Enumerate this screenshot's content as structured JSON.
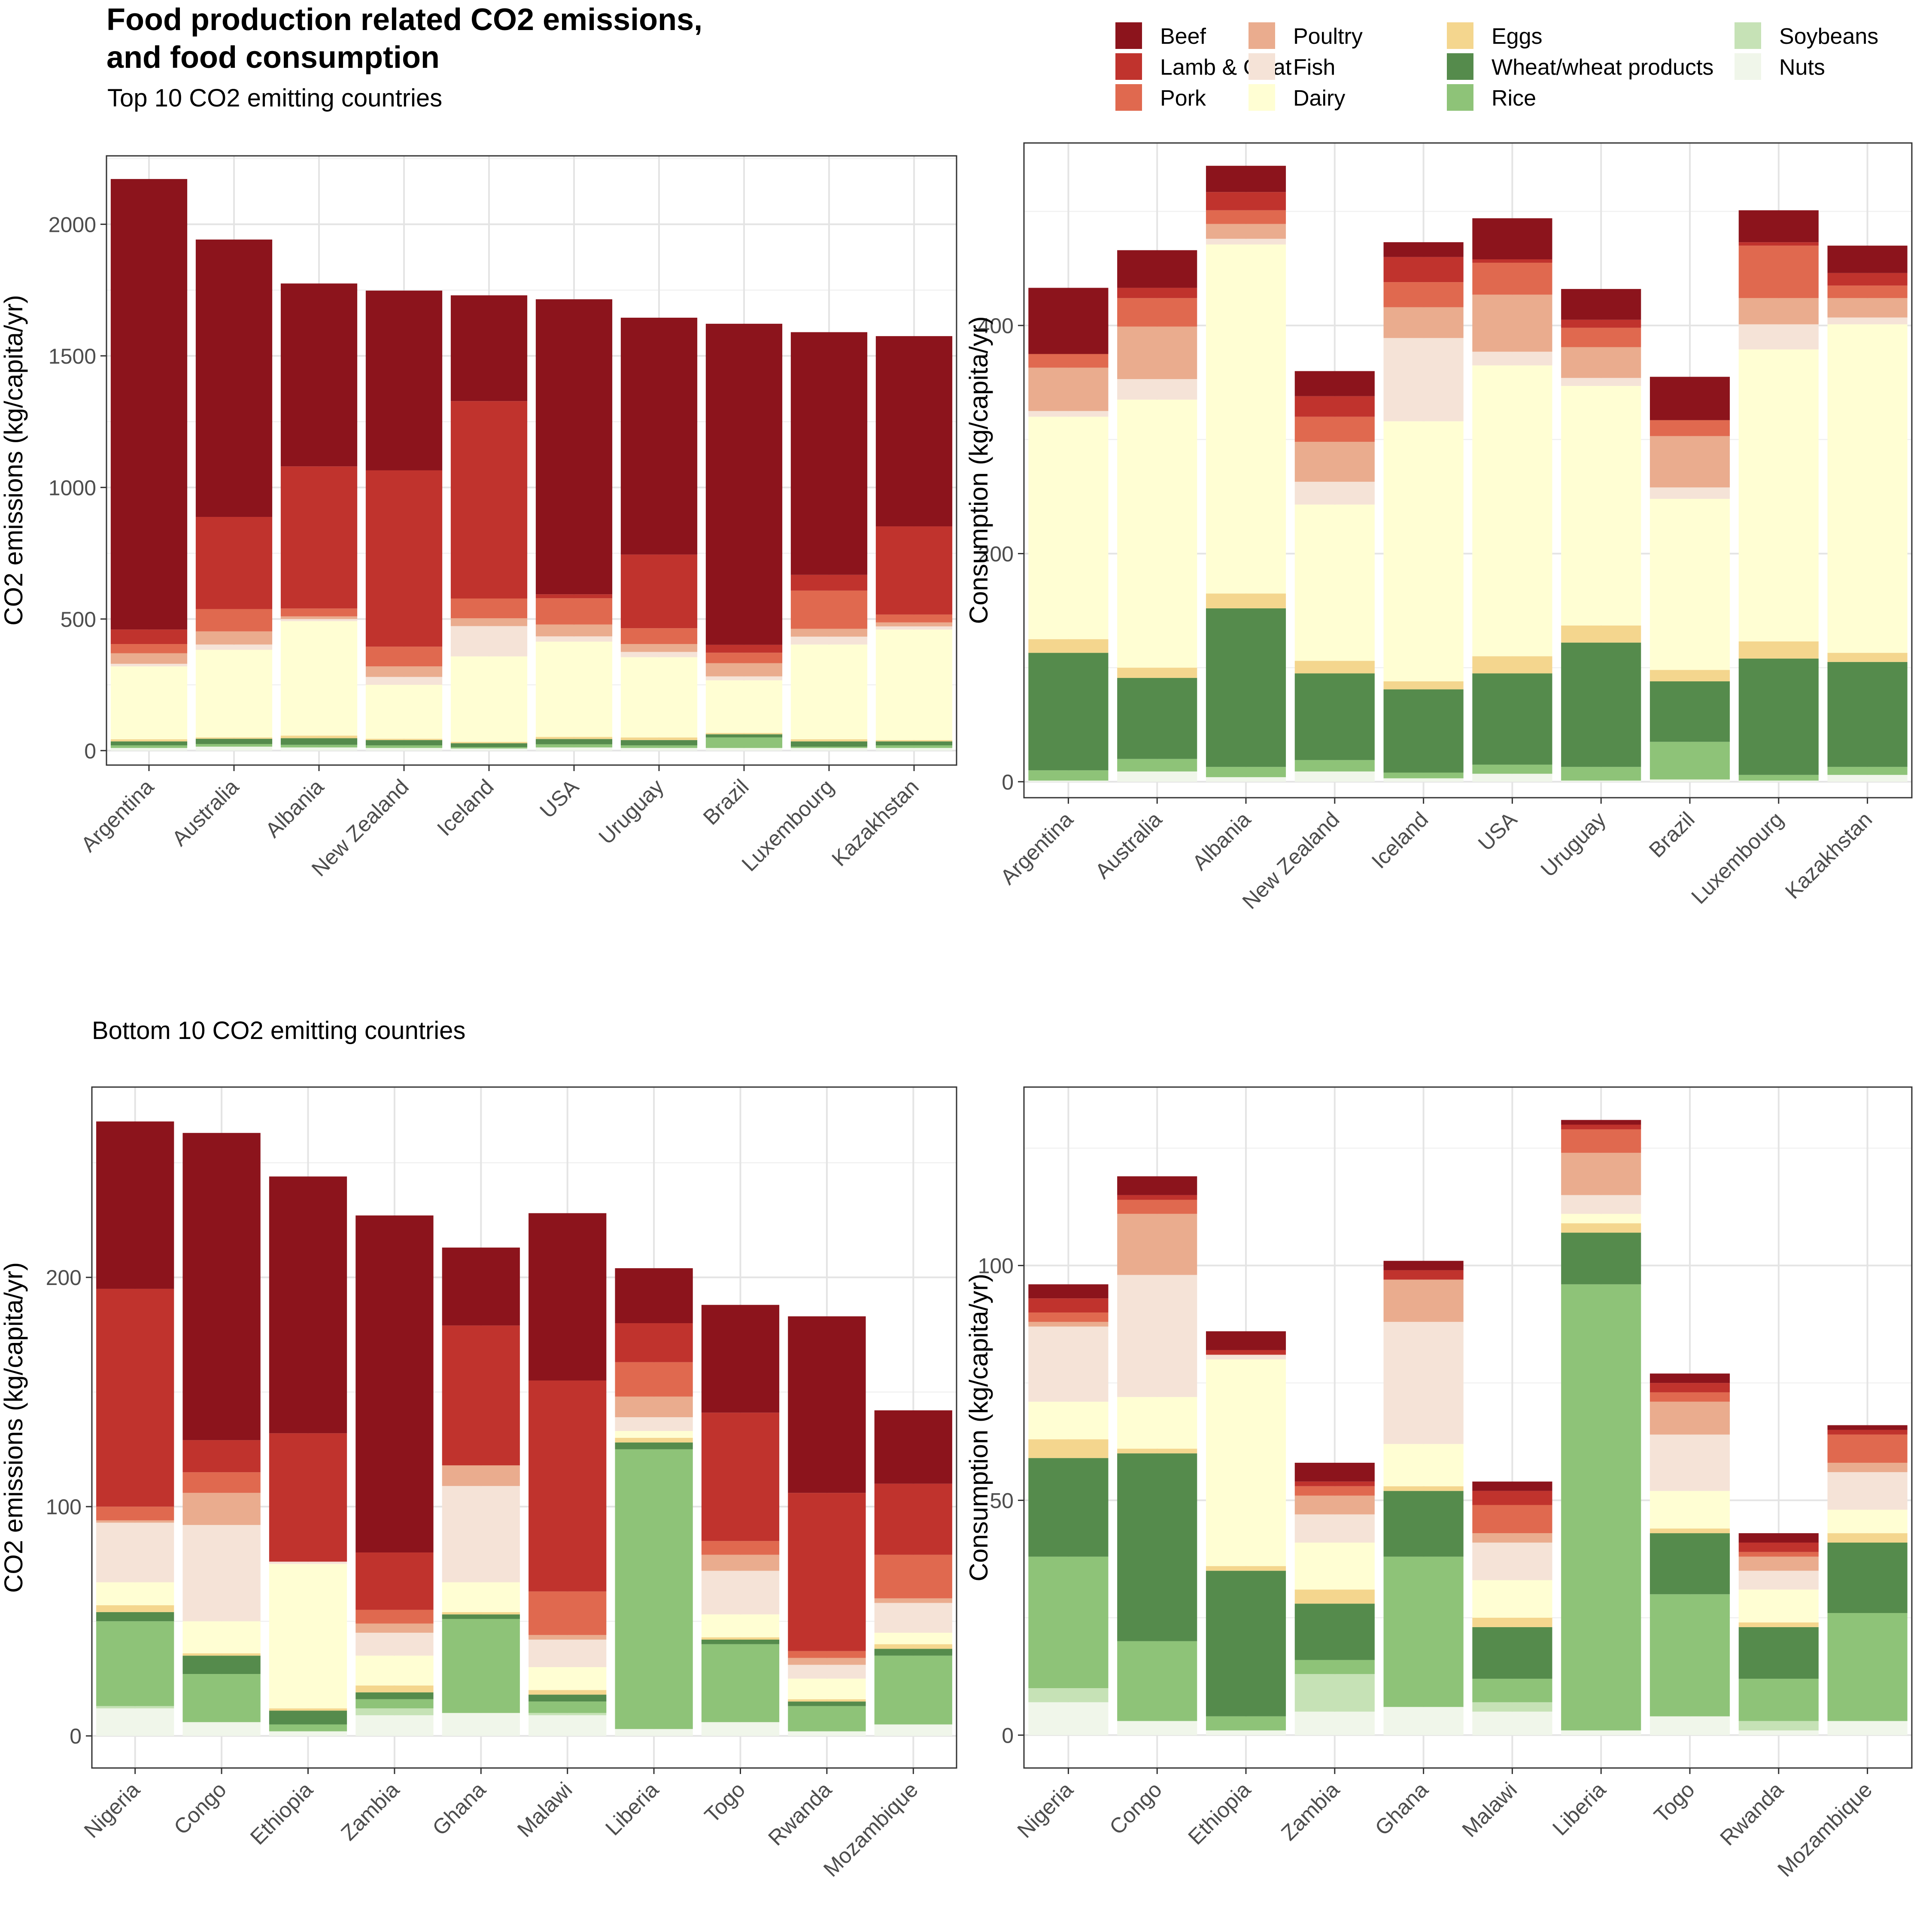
{
  "title_line1": "Food production related CO2 emissions,",
  "title_line2": "and food consumption",
  "subtitle_top": "Top 10 CO2 emitting countries",
  "subtitle_bottom": "Bottom 10 CO2 emitting countries",
  "colors": {
    "Beef": "#8c141c",
    "Lamb & Goat": "#c0332d",
    "Pork": "#e0694f",
    "Poultry": "#eaac8e",
    "Fish": "#f5e3d7",
    "Dairy": "#fffed3",
    "Eggs": "#f4d68e",
    "Wheat/wheat products": "#558b4c",
    "Rice": "#8ec378",
    "Soybeans": "#c6e2b6",
    "Nuts": "#f0f6ea"
  },
  "legend": {
    "items": [
      "Beef",
      "Lamb & Goat",
      "Pork",
      "Poultry",
      "Fish",
      "Dairy",
      "Eggs",
      "Wheat/wheat products",
      "Rice",
      "Soybeans",
      "Nuts"
    ]
  },
  "chart_data": [
    {
      "type": "bar",
      "stacked": true,
      "ylabel": "CO2 emissions (kg/capita/yr)",
      "ylim": [
        -55,
        2260
      ],
      "yticks": [
        0,
        500,
        1000,
        1500,
        2000
      ],
      "grid": true,
      "categories": [
        "Argentina",
        "Australia",
        "Albania",
        "New Zealand",
        "Iceland",
        "USA",
        "Uruguay",
        "Brazil",
        "Luxembourg",
        "Kazakhstan"
      ],
      "series": [
        {
          "name": "Nuts",
          "values": [
            10,
            15,
            12,
            10,
            8,
            12,
            10,
            10,
            10,
            10
          ]
        },
        {
          "name": "Soybeans",
          "values": [
            0,
            0,
            0,
            0,
            0,
            0,
            0,
            0,
            0,
            0
          ]
        },
        {
          "name": "Rice",
          "values": [
            10,
            10,
            10,
            10,
            5,
            12,
            10,
            40,
            5,
            10
          ]
        },
        {
          "name": "Wheat/wheat products",
          "values": [
            15,
            20,
            25,
            20,
            15,
            20,
            20,
            12,
            20,
            15
          ]
        },
        {
          "name": "Eggs",
          "values": [
            8,
            5,
            10,
            5,
            5,
            8,
            10,
            5,
            8,
            5
          ]
        },
        {
          "name": "Dairy",
          "values": [
            277,
            333,
            435,
            205,
            325,
            362,
            305,
            200,
            360,
            420
          ]
        },
        {
          "name": "Fish",
          "values": [
            10,
            20,
            8,
            30,
            115,
            20,
            20,
            15,
            30,
            12
          ]
        },
        {
          "name": "Poultry",
          "values": [
            40,
            50,
            10,
            40,
            30,
            45,
            30,
            50,
            30,
            15
          ]
        },
        {
          "name": "Pork",
          "values": [
            35,
            85,
            30,
            75,
            75,
            100,
            60,
            40,
            145,
            30
          ]
        },
        {
          "name": "Lamb & Goat",
          "values": [
            55,
            350,
            540,
            670,
            750,
            15,
            280,
            30,
            60,
            335
          ]
        },
        {
          "name": "Beef",
          "values": [
            1712,
            1054,
            695,
            683,
            402,
            1121,
            900,
            1220,
            922,
            723
          ]
        }
      ]
    },
    {
      "type": "bar",
      "stacked": true,
      "ylabel": "Consumption (kg/capita/yr)",
      "ylim": [
        -14,
        560
      ],
      "yticks": [
        0,
        200,
        400
      ],
      "grid": true,
      "categories": [
        "Argentina",
        "Australia",
        "Albania",
        "New Zealand",
        "Iceland",
        "USA",
        "Uruguay",
        "Brazil",
        "Luxembourg",
        "Kazakhstan"
      ],
      "series": [
        {
          "name": "Nuts",
          "values": [
            1,
            9,
            4,
            9,
            3,
            7,
            1,
            2,
            1,
            6
          ]
        },
        {
          "name": "Soybeans",
          "values": [
            0,
            0,
            0,
            0,
            0,
            0,
            0,
            0,
            0,
            0
          ]
        },
        {
          "name": "Rice",
          "values": [
            9,
            11,
            9,
            10,
            5,
            8,
            12,
            33,
            5,
            7
          ]
        },
        {
          "name": "Wheat/wheat products",
          "values": [
            103,
            71,
            139,
            76,
            73,
            80,
            109,
            53,
            102,
            92
          ]
        },
        {
          "name": "Eggs",
          "values": [
            12,
            9,
            13,
            11,
            7,
            15,
            15,
            10,
            15,
            8
          ]
        },
        {
          "name": "Dairy",
          "values": [
            195,
            235,
            306,
            137,
            228,
            255,
            210,
            150,
            256,
            288
          ]
        },
        {
          "name": "Fish",
          "values": [
            5,
            18,
            5,
            20,
            73,
            12,
            7,
            10,
            22,
            6
          ]
        },
        {
          "name": "Poultry",
          "values": [
            38,
            46,
            13,
            35,
            27,
            50,
            27,
            45,
            23,
            17
          ]
        },
        {
          "name": "Pork",
          "values": [
            12,
            25,
            12,
            22,
            22,
            28,
            17,
            14,
            46,
            11
          ]
        },
        {
          "name": "Lamb & Goat",
          "values": [
            0,
            9,
            16,
            18,
            22,
            3,
            7,
            0,
            3,
            11
          ]
        },
        {
          "name": "Beef",
          "values": [
            58,
            33,
            23,
            22,
            13,
            36,
            27,
            38,
            28,
            24
          ]
        }
      ]
    },
    {
      "type": "bar",
      "stacked": true,
      "ylabel": "CO2 emissions (kg/capita/yr)",
      "ylim": [
        -14,
        283
      ],
      "yticks": [
        0,
        100,
        200
      ],
      "grid": true,
      "categories": [
        "Nigeria",
        "Congo",
        "Ethiopia",
        "Zambia",
        "Ghana",
        "Malawi",
        "Liberia",
        "Togo",
        "Rwanda",
        "Mozambique"
      ],
      "series": [
        {
          "name": "Nuts",
          "values": [
            12,
            6,
            2,
            9,
            10,
            9,
            3,
            6,
            2,
            5
          ]
        },
        {
          "name": "Soybeans",
          "values": [
            1,
            0,
            0,
            3,
            0,
            1,
            0,
            0,
            0,
            0
          ]
        },
        {
          "name": "Rice",
          "values": [
            37,
            21,
            3,
            4,
            41,
            5,
            122,
            34,
            11,
            30
          ]
        },
        {
          "name": "Wheat/wheat products",
          "values": [
            4,
            8,
            6,
            3,
            2,
            3,
            3,
            2,
            2,
            3
          ]
        },
        {
          "name": "Eggs",
          "values": [
            3,
            1,
            1,
            3,
            1,
            2,
            2,
            1,
            1,
            2
          ]
        },
        {
          "name": "Dairy",
          "values": [
            10,
            14,
            63,
            13,
            13,
            10,
            3,
            10,
            9,
            5
          ]
        },
        {
          "name": "Fish",
          "values": [
            26,
            42,
            1,
            10,
            42,
            12,
            6,
            19,
            6,
            13
          ]
        },
        {
          "name": "Poultry",
          "values": [
            1,
            14,
            0,
            4,
            9,
            2,
            9,
            7,
            3,
            2
          ]
        },
        {
          "name": "Pork",
          "values": [
            6,
            9,
            0,
            6,
            0,
            19,
            15,
            6,
            3,
            19
          ]
        },
        {
          "name": "Lamb & Goat",
          "values": [
            95,
            14,
            56,
            25,
            61,
            92,
            17,
            56,
            69,
            31
          ]
        },
        {
          "name": "Beef",
          "values": [
            73,
            134,
            112,
            147,
            34,
            73,
            24,
            47,
            77,
            32
          ]
        }
      ]
    },
    {
      "type": "bar",
      "stacked": true,
      "ylabel": "Consumption (kg/capita/yr)",
      "ylim": [
        -7,
        138
      ],
      "yticks": [
        0,
        50,
        100
      ],
      "grid": true,
      "categories": [
        "Nigeria",
        "Congo",
        "Ethiopia",
        "Zambia",
        "Ghana",
        "Malawi",
        "Liberia",
        "Togo",
        "Rwanda",
        "Mozambique"
      ],
      "series": [
        {
          "name": "Nuts",
          "values": [
            7,
            3,
            1,
            5,
            6,
            5,
            1,
            4,
            1,
            3
          ]
        },
        {
          "name": "Soybeans",
          "values": [
            3,
            0,
            0,
            8,
            0,
            2,
            0,
            0,
            2,
            0
          ]
        },
        {
          "name": "Rice",
          "values": [
            28,
            17,
            3,
            3,
            32,
            5,
            95,
            26,
            9,
            23
          ]
        },
        {
          "name": "Wheat/wheat products",
          "values": [
            21,
            40,
            31,
            12,
            14,
            11,
            11,
            13,
            11,
            15
          ]
        },
        {
          "name": "Eggs",
          "values": [
            4,
            1,
            1,
            3,
            1,
            2,
            2,
            1,
            1,
            2
          ]
        },
        {
          "name": "Dairy",
          "values": [
            8,
            11,
            44,
            10,
            9,
            8,
            2,
            8,
            7,
            5
          ]
        },
        {
          "name": "Fish",
          "values": [
            16,
            26,
            1,
            6,
            26,
            8,
            4,
            12,
            4,
            8
          ]
        },
        {
          "name": "Poultry",
          "values": [
            1,
            13,
            0,
            4,
            9,
            2,
            9,
            7,
            3,
            2
          ]
        },
        {
          "name": "Pork",
          "values": [
            2,
            3,
            0,
            2,
            0,
            6,
            5,
            2,
            1,
            6
          ]
        },
        {
          "name": "Lamb & Goat",
          "values": [
            3,
            1,
            1,
            1,
            2,
            3,
            1,
            2,
            2,
            1
          ]
        },
        {
          "name": "Beef",
          "values": [
            3,
            4,
            4,
            4,
            2,
            2,
            1,
            2,
            2,
            1
          ]
        }
      ]
    }
  ]
}
